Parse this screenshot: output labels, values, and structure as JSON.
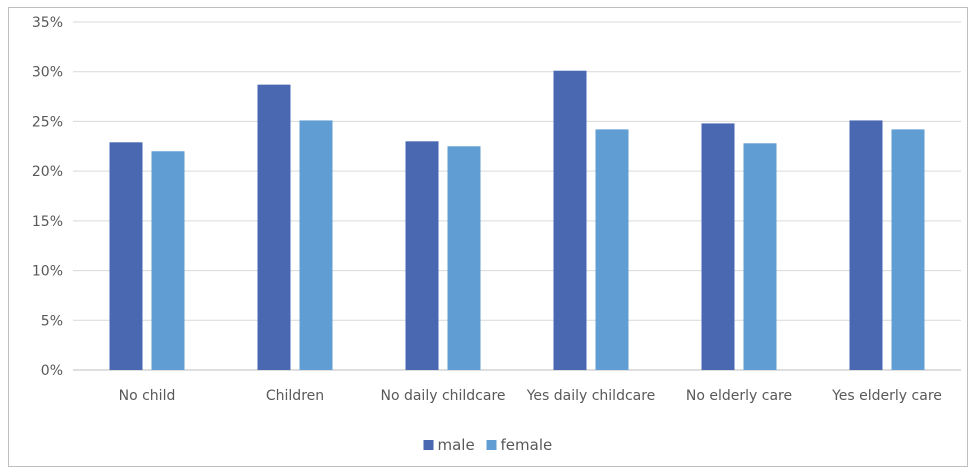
{
  "chart_data": {
    "type": "bar",
    "categories": [
      "No child",
      "Children",
      "No daily childcare",
      "Yes daily childcare",
      "No elderly care",
      "Yes elderly care"
    ],
    "series": [
      {
        "name": "male",
        "color": "#4a67b1",
        "values": [
          22.9,
          28.7,
          23.0,
          30.1,
          24.8,
          25.1
        ]
      },
      {
        "name": "female",
        "color": "#5f9dd3",
        "values": [
          22.0,
          25.1,
          22.5,
          24.2,
          22.8,
          24.2
        ]
      }
    ],
    "ylim": [
      0,
      35
    ],
    "yticks": [
      0,
      5,
      10,
      15,
      20,
      25,
      30,
      35
    ],
    "ytick_labels": [
      "0%",
      "5%",
      "10%",
      "15%",
      "20%",
      "25%",
      "30%",
      "35%"
    ],
    "grid": true,
    "legend_position": "bottom-center",
    "title": "",
    "xlabel": "",
    "ylabel": ""
  }
}
